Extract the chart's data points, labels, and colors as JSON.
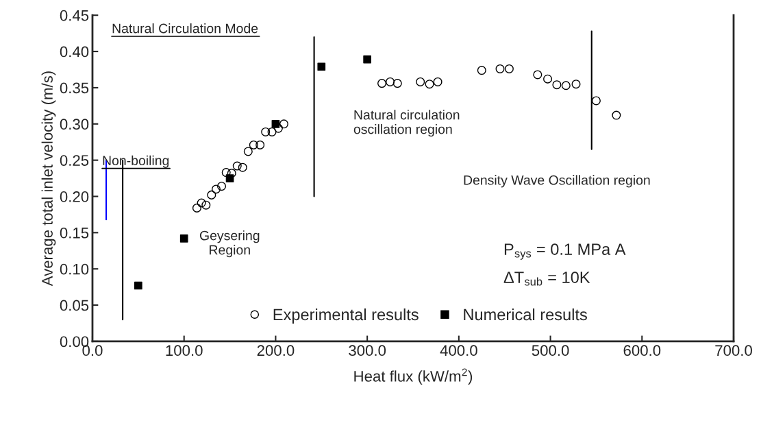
{
  "chart_data": {
    "type": "scatter",
    "xlabel": "Heat flux (kW/m$^{2}$)",
    "ylabel": "Average total inlet velocity (m/s)",
    "xlim": [
      0,
      700
    ],
    "xticks": [
      {
        "value": 0,
        "label": "0.0"
      },
      {
        "value": 100,
        "label": "100.0"
      },
      {
        "value": 200,
        "label": "200.0"
      },
      {
        "value": 300,
        "label": "300.0"
      },
      {
        "value": 400,
        "label": "400.0"
      },
      {
        "value": 500,
        "label": "500.0"
      },
      {
        "value": 600,
        "label": "600.0"
      },
      {
        "value": 700,
        "label": "700.0"
      }
    ],
    "ylim": [
      0,
      0.45
    ],
    "yticks": [
      {
        "value": 0,
        "label": "0.00"
      },
      {
        "value": 0.05,
        "label": "0.05"
      },
      {
        "value": 0.1,
        "label": "0.10"
      },
      {
        "value": 0.15,
        "label": "0.15"
      },
      {
        "value": 0.2,
        "label": "0.20"
      },
      {
        "value": 0.25,
        "label": "0.25"
      },
      {
        "value": 0.3,
        "label": "0.30"
      },
      {
        "value": 0.35,
        "label": "0.35"
      },
      {
        "value": 0.4,
        "label": "0.40"
      },
      {
        "value": 0.45,
        "label": "0.45"
      }
    ],
    "grid": false,
    "legend": "bottom",
    "series": [
      {
        "name": "Experimental results",
        "color": "#000000",
        "marker": "circle",
        "x": [
          114,
          119,
          124,
          130,
          135,
          141,
          146,
          152,
          158,
          164,
          170,
          176,
          183,
          189,
          196,
          203,
          209,
          316,
          325,
          333,
          358,
          368,
          377,
          425,
          445,
          455,
          486,
          497,
          507,
          517,
          528,
          550,
          572
        ],
        "values": [
          0.184,
          0.191,
          0.188,
          0.202,
          0.21,
          0.214,
          0.233,
          0.232,
          0.242,
          0.24,
          0.262,
          0.271,
          0.271,
          0.289,
          0.289,
          0.294,
          0.3,
          0.356,
          0.358,
          0.356,
          0.358,
          0.355,
          0.358,
          0.374,
          0.376,
          0.376,
          0.368,
          0.362,
          0.354,
          0.353,
          0.355,
          0.332,
          0.312
        ]
      },
      {
        "name": "Numerical results",
        "color": "#000000",
        "marker": "square",
        "x": [
          50,
          100,
          150,
          200,
          250,
          300
        ],
        "values": [
          0.077,
          0.142,
          0.225,
          0.3,
          0.379,
          0.389
        ]
      },
      {
        "type": "line",
        "color": "#000000",
        "marker": "none",
        "x": [
          33,
          33
        ],
        "values": [
          0.03,
          0.25
        ]
      },
      {
        "type": "line",
        "color": "#000000",
        "marker": "none",
        "x": [
          242,
          242
        ],
        "values": [
          0.2,
          0.42
        ]
      },
      {
        "type": "line",
        "color": "#000000",
        "marker": "none",
        "x": [
          545,
          545
        ],
        "values": [
          0.265,
          0.428
        ]
      },
      {
        "type": "line",
        "color": "#0000ff",
        "marker": "none",
        "x": [
          15,
          15
        ],
        "values": [
          0.25,
          0.168
        ]
      }
    ],
    "annotations": [
      "Natural Circulation Mode",
      "Non-boiling",
      "Geysering\nRegion",
      "Natural circulation\noscillation region",
      "Density Wave Oscillation region",
      "P$_{sys}$ = 0.1 MPa A",
      "ΔT$_{sub}$ = 10K"
    ]
  }
}
